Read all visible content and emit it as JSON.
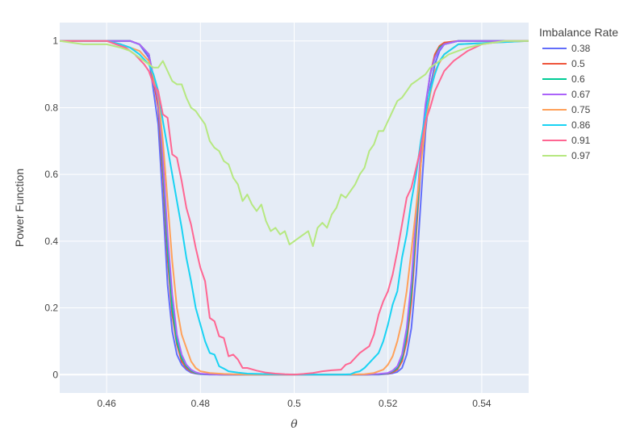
{
  "chart_data": {
    "type": "line",
    "title": "",
    "xlabel": "θ",
    "ylabel": "Power Function",
    "xlim": [
      0.45,
      0.55
    ],
    "ylim": [
      -0.055,
      1.055
    ],
    "x_ticks": [
      0.46,
      0.48,
      0.5,
      0.52,
      0.54
    ],
    "x_tick_labels": [
      "0.46",
      "0.48",
      "0.5",
      "0.52",
      "0.54"
    ],
    "y_ticks": [
      0,
      0.2,
      0.4,
      0.6,
      0.8,
      1
    ],
    "y_tick_labels": [
      "0",
      "0.2",
      "0.4",
      "0.6",
      "0.8",
      "1"
    ],
    "grid": true,
    "plot_background": "#e5ecf6",
    "legend": {
      "title": "Imbalance Rate",
      "position": "right"
    },
    "series": [
      {
        "name": "0.38",
        "color": "#636efa",
        "x": [
          0.45,
          0.46,
          0.465,
          0.467,
          0.469,
          0.471,
          0.472,
          0.473,
          0.474,
          0.475,
          0.476,
          0.477,
          0.478,
          0.479,
          0.48,
          0.482,
          0.485,
          0.49,
          0.51,
          0.515,
          0.518,
          0.52,
          0.521,
          0.522,
          0.523,
          0.524,
          0.525,
          0.526,
          0.527,
          0.528,
          0.529,
          0.53,
          0.531,
          0.532,
          0.535,
          0.55
        ],
        "y": [
          1,
          1,
          1,
          0.99,
          0.95,
          0.75,
          0.52,
          0.27,
          0.13,
          0.06,
          0.03,
          0.015,
          0.006,
          0.003,
          0.001,
          0,
          0,
          0,
          0,
          0,
          0,
          0.002,
          0.004,
          0.008,
          0.02,
          0.06,
          0.14,
          0.3,
          0.52,
          0.73,
          0.86,
          0.93,
          0.97,
          0.99,
          1,
          1
        ]
      },
      {
        "name": "0.5",
        "color": "#ef553b",
        "x": [
          0.45,
          0.46,
          0.465,
          0.467,
          0.469,
          0.471,
          0.472,
          0.473,
          0.474,
          0.475,
          0.476,
          0.477,
          0.478,
          0.479,
          0.48,
          0.482,
          0.485,
          0.49,
          0.51,
          0.515,
          0.518,
          0.52,
          0.521,
          0.522,
          0.523,
          0.524,
          0.525,
          0.526,
          0.527,
          0.528,
          0.529,
          0.53,
          0.531,
          0.532,
          0.535,
          0.55
        ],
        "y": [
          1,
          1,
          1,
          0.99,
          0.96,
          0.8,
          0.6,
          0.35,
          0.18,
          0.09,
          0.04,
          0.02,
          0.009,
          0.004,
          0.002,
          0.001,
          0,
          0,
          0,
          0,
          0.001,
          0.003,
          0.007,
          0.015,
          0.04,
          0.1,
          0.22,
          0.42,
          0.63,
          0.8,
          0.9,
          0.96,
          0.985,
          0.995,
          1,
          1
        ]
      },
      {
        "name": "0.6",
        "color": "#00cc96",
        "x": [
          0.45,
          0.46,
          0.465,
          0.467,
          0.469,
          0.471,
          0.472,
          0.473,
          0.474,
          0.475,
          0.476,
          0.477,
          0.478,
          0.479,
          0.48,
          0.482,
          0.485,
          0.49,
          0.51,
          0.515,
          0.518,
          0.52,
          0.521,
          0.522,
          0.523,
          0.524,
          0.525,
          0.526,
          0.527,
          0.528,
          0.529,
          0.53,
          0.531,
          0.532,
          0.535,
          0.55
        ],
        "y": [
          1,
          1,
          1,
          0.99,
          0.96,
          0.82,
          0.63,
          0.38,
          0.2,
          0.1,
          0.05,
          0.025,
          0.012,
          0.005,
          0.002,
          0.001,
          0,
          0,
          0,
          0,
          0.001,
          0.004,
          0.01,
          0.02,
          0.05,
          0.12,
          0.25,
          0.45,
          0.65,
          0.8,
          0.9,
          0.95,
          0.98,
          0.99,
          1,
          1
        ]
      },
      {
        "name": "0.67",
        "color": "#ab63fa",
        "x": [
          0.45,
          0.46,
          0.465,
          0.467,
          0.469,
          0.471,
          0.472,
          0.473,
          0.474,
          0.475,
          0.476,
          0.477,
          0.478,
          0.479,
          0.48,
          0.482,
          0.485,
          0.49,
          0.51,
          0.515,
          0.518,
          0.52,
          0.521,
          0.522,
          0.523,
          0.524,
          0.525,
          0.526,
          0.527,
          0.528,
          0.529,
          0.53,
          0.531,
          0.532,
          0.535,
          0.55
        ],
        "y": [
          1,
          1,
          1,
          0.99,
          0.96,
          0.82,
          0.65,
          0.42,
          0.24,
          0.12,
          0.06,
          0.03,
          0.015,
          0.007,
          0.003,
          0.001,
          0,
          0,
          0,
          0,
          0.002,
          0.005,
          0.012,
          0.025,
          0.06,
          0.14,
          0.28,
          0.48,
          0.67,
          0.81,
          0.9,
          0.95,
          0.975,
          0.99,
          1,
          1
        ]
      },
      {
        "name": "0.75",
        "color": "#ffa15a",
        "x": [
          0.45,
          0.46,
          0.463,
          0.465,
          0.467,
          0.469,
          0.471,
          0.472,
          0.473,
          0.474,
          0.475,
          0.476,
          0.477,
          0.478,
          0.479,
          0.48,
          0.482,
          0.485,
          0.49,
          0.51,
          0.515,
          0.517,
          0.519,
          0.52,
          0.521,
          0.522,
          0.523,
          0.524,
          0.525,
          0.526,
          0.527,
          0.528,
          0.529,
          0.53,
          0.532,
          0.535,
          0.55
        ],
        "y": [
          1,
          1,
          0.99,
          0.98,
          0.97,
          0.94,
          0.84,
          0.7,
          0.52,
          0.34,
          0.2,
          0.12,
          0.08,
          0.04,
          0.02,
          0.01,
          0.005,
          0.002,
          0,
          0,
          0.001,
          0.005,
          0.015,
          0.03,
          0.055,
          0.1,
          0.16,
          0.25,
          0.37,
          0.5,
          0.63,
          0.75,
          0.84,
          0.91,
          0.96,
          0.99,
          1
        ]
      },
      {
        "name": "0.86",
        "color": "#19d3f3",
        "x": [
          0.45,
          0.46,
          0.463,
          0.465,
          0.467,
          0.469,
          0.47,
          0.471,
          0.472,
          0.473,
          0.474,
          0.475,
          0.476,
          0.477,
          0.478,
          0.479,
          0.48,
          0.481,
          0.482,
          0.483,
          0.484,
          0.485,
          0.486,
          0.488,
          0.49,
          0.495,
          0.5,
          0.505,
          0.51,
          0.512,
          0.513,
          0.514,
          0.515,
          0.516,
          0.517,
          0.518,
          0.519,
          0.52,
          0.521,
          0.522,
          0.523,
          0.524,
          0.525,
          0.526,
          0.527,
          0.528,
          0.529,
          0.53,
          0.531,
          0.532,
          0.535,
          0.55
        ],
        "y": [
          1,
          1,
          0.99,
          0.98,
          0.96,
          0.93,
          0.9,
          0.85,
          0.76,
          0.68,
          0.6,
          0.52,
          0.44,
          0.35,
          0.28,
          0.2,
          0.15,
          0.1,
          0.065,
          0.06,
          0.025,
          0.018,
          0.01,
          0.006,
          0.003,
          0.001,
          0,
          0,
          0,
          0.001,
          0.007,
          0.01,
          0.02,
          0.035,
          0.05,
          0.065,
          0.1,
          0.15,
          0.21,
          0.25,
          0.35,
          0.42,
          0.52,
          0.6,
          0.7,
          0.78,
          0.85,
          0.9,
          0.94,
          0.96,
          0.99,
          1
        ]
      },
      {
        "name": "0.91",
        "color": "#ff6692",
        "x": [
          0.45,
          0.46,
          0.462,
          0.464,
          0.466,
          0.468,
          0.469,
          0.47,
          0.471,
          0.472,
          0.473,
          0.474,
          0.475,
          0.476,
          0.477,
          0.478,
          0.479,
          0.48,
          0.481,
          0.482,
          0.483,
          0.484,
          0.485,
          0.486,
          0.487,
          0.488,
          0.489,
          0.49,
          0.492,
          0.494,
          0.496,
          0.498,
          0.5,
          0.502,
          0.504,
          0.506,
          0.508,
          0.51,
          0.511,
          0.512,
          0.513,
          0.514,
          0.515,
          0.516,
          0.517,
          0.518,
          0.519,
          0.52,
          0.521,
          0.522,
          0.523,
          0.524,
          0.525,
          0.526,
          0.527,
          0.528,
          0.529,
          0.53,
          0.531,
          0.532,
          0.534,
          0.537,
          0.54,
          0.545,
          0.55
        ],
        "y": [
          1,
          1,
          0.99,
          0.98,
          0.96,
          0.93,
          0.91,
          0.87,
          0.85,
          0.78,
          0.77,
          0.66,
          0.65,
          0.58,
          0.5,
          0.45,
          0.38,
          0.32,
          0.28,
          0.17,
          0.16,
          0.115,
          0.11,
          0.055,
          0.06,
          0.045,
          0.02,
          0.02,
          0.012,
          0.006,
          0.003,
          0.001,
          0,
          0.002,
          0.005,
          0.01,
          0.013,
          0.015,
          0.03,
          0.035,
          0.05,
          0.065,
          0.075,
          0.085,
          0.12,
          0.18,
          0.22,
          0.25,
          0.3,
          0.37,
          0.45,
          0.53,
          0.56,
          0.62,
          0.68,
          0.76,
          0.8,
          0.85,
          0.88,
          0.91,
          0.94,
          0.97,
          0.99,
          1,
          1
        ]
      },
      {
        "name": "0.97",
        "color": "#b6e880",
        "x": [
          0.45,
          0.455,
          0.46,
          0.463,
          0.465,
          0.467,
          0.469,
          0.47,
          0.471,
          0.472,
          0.473,
          0.474,
          0.475,
          0.476,
          0.477,
          0.478,
          0.479,
          0.48,
          0.481,
          0.482,
          0.483,
          0.484,
          0.485,
          0.486,
          0.487,
          0.488,
          0.489,
          0.49,
          0.491,
          0.492,
          0.493,
          0.494,
          0.495,
          0.496,
          0.497,
          0.498,
          0.499,
          0.5,
          0.501,
          0.502,
          0.503,
          0.504,
          0.505,
          0.506,
          0.507,
          0.508,
          0.509,
          0.51,
          0.511,
          0.512,
          0.513,
          0.514,
          0.515,
          0.516,
          0.517,
          0.518,
          0.519,
          0.52,
          0.521,
          0.522,
          0.523,
          0.524,
          0.525,
          0.526,
          0.527,
          0.528,
          0.529,
          0.53,
          0.531,
          0.533,
          0.535,
          0.537,
          0.54,
          0.545,
          0.55
        ],
        "y": [
          1,
          0.99,
          0.99,
          0.98,
          0.97,
          0.95,
          0.93,
          0.92,
          0.92,
          0.94,
          0.91,
          0.88,
          0.87,
          0.87,
          0.83,
          0.8,
          0.79,
          0.77,
          0.75,
          0.7,
          0.68,
          0.67,
          0.64,
          0.63,
          0.59,
          0.57,
          0.52,
          0.54,
          0.51,
          0.49,
          0.51,
          0.46,
          0.43,
          0.44,
          0.42,
          0.43,
          0.39,
          0.4,
          0.41,
          0.42,
          0.43,
          0.385,
          0.44,
          0.455,
          0.44,
          0.48,
          0.5,
          0.54,
          0.53,
          0.55,
          0.57,
          0.6,
          0.62,
          0.67,
          0.69,
          0.73,
          0.73,
          0.76,
          0.79,
          0.82,
          0.83,
          0.85,
          0.87,
          0.88,
          0.89,
          0.9,
          0.92,
          0.93,
          0.94,
          0.96,
          0.97,
          0.98,
          0.99,
          1,
          1
        ]
      }
    ]
  }
}
